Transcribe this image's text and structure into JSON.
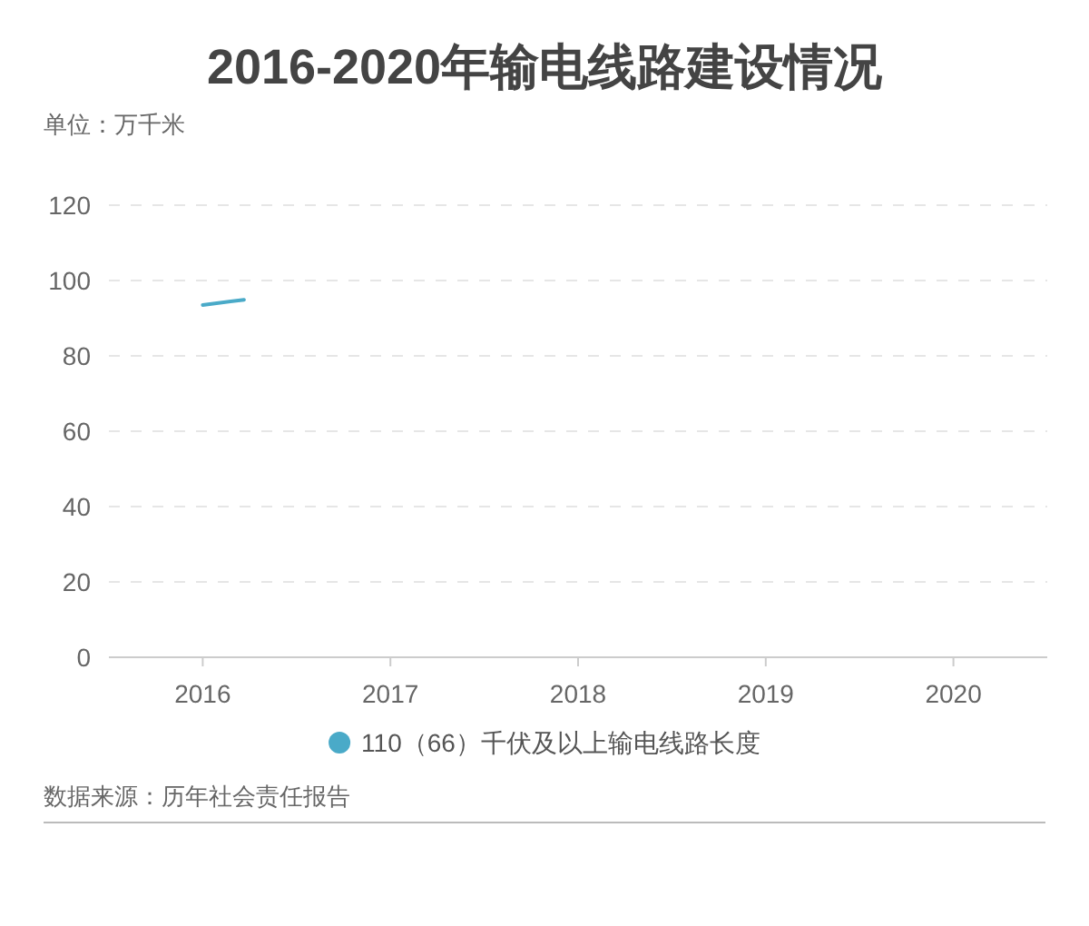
{
  "chart_data": {
    "type": "line",
    "title": "2016-2020年输电线路建设情况",
    "ylabel": "单位：万千米",
    "series": [
      {
        "name": "110（66）千伏及以上输电线路长度",
        "color": "#4aaac8",
        "x": [
          2016,
          2016.22
        ],
        "values": [
          93.5,
          94.9
        ]
      }
    ],
    "xlim": [
      2015.5,
      2020.5
    ],
    "xticks": [
      2016,
      2017,
      2018,
      2019,
      2020
    ],
    "ylim": [
      0,
      120
    ],
    "yticks": [
      0,
      20,
      40,
      60,
      80,
      100,
      120
    ],
    "grid": "y",
    "legend": "bottom",
    "marker": "none",
    "annotations": [
      "数据来源：历年社会责任报告"
    ]
  }
}
